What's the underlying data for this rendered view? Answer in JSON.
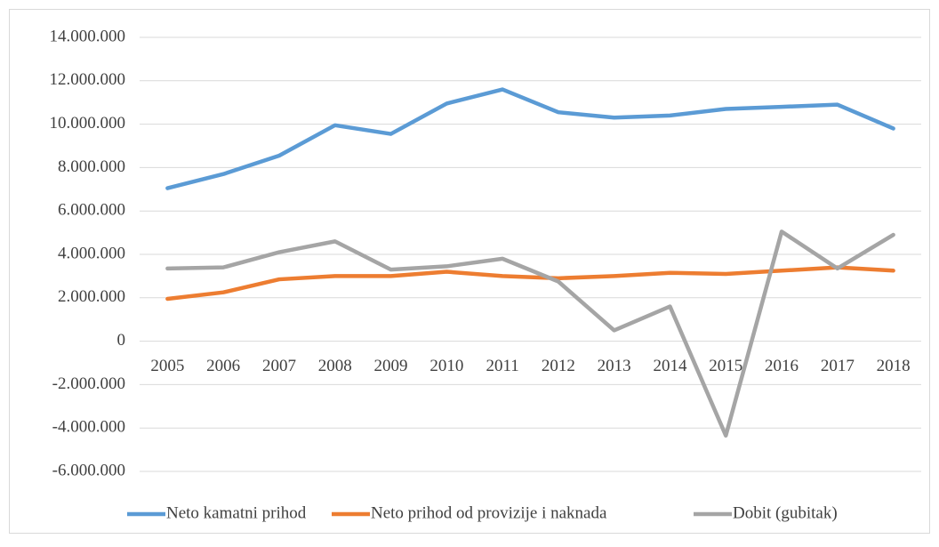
{
  "chart_data": {
    "type": "line",
    "categories": [
      "2005",
      "2006",
      "2007",
      "2008",
      "2009",
      "2010",
      "2011",
      "2012",
      "2013",
      "2014",
      "2015",
      "2016",
      "2017",
      "2018"
    ],
    "series": [
      {
        "name": "Neto kamatni prihod",
        "color": "#5b9bd5",
        "values": [
          7050000,
          7700000,
          8550000,
          9950000,
          9550000,
          10950000,
          11600000,
          10550000,
          10300000,
          10400000,
          10700000,
          10800000,
          10900000,
          9800000
        ]
      },
      {
        "name": "Neto prihod od provizije i naknada",
        "color": "#ed7d31",
        "values": [
          1950000,
          2250000,
          2850000,
          3000000,
          3000000,
          3200000,
          3000000,
          2900000,
          3000000,
          3150000,
          3100000,
          3250000,
          3400000,
          3250000
        ]
      },
      {
        "name": "Dobit (gubitak)",
        "color": "#a5a5a5",
        "values": [
          3350000,
          3400000,
          4100000,
          4600000,
          3300000,
          3450000,
          3800000,
          2750000,
          500000,
          1600000,
          -4350000,
          5050000,
          3350000,
          4900000
        ]
      }
    ],
    "ylim": [
      -6000000,
      14000000
    ],
    "yticks": [
      {
        "value": -6000000,
        "label": "-6.000.000"
      },
      {
        "value": -4000000,
        "label": "-4.000.000"
      },
      {
        "value": -2000000,
        "label": "-2.000.000"
      },
      0,
      {
        "value": 2000000,
        "label": "2.000.000"
      },
      {
        "value": 4000000,
        "label": "4.000.000"
      },
      {
        "value": 6000000,
        "label": "6.000.000"
      },
      {
        "value": 8000000,
        "label": "8.000.000"
      },
      {
        "value": 10000000,
        "label": "10.000.000"
      },
      {
        "value": 12000000,
        "label": "12.000.000"
      },
      {
        "value": 14000000,
        "label": "14.000.000"
      }
    ],
    "grid": true,
    "legend": "bottom"
  }
}
